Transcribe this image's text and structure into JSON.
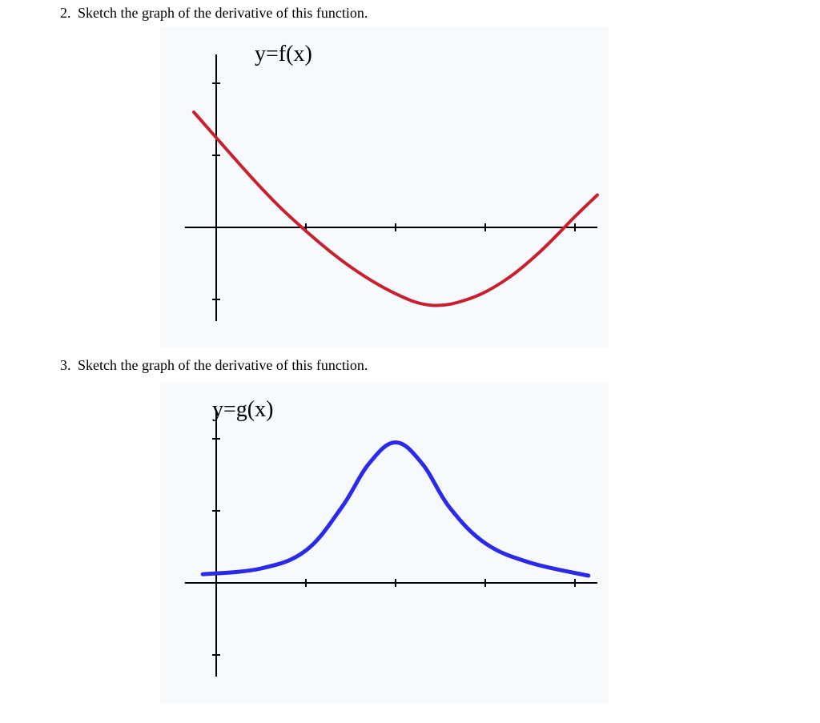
{
  "problem2": {
    "number": "2.",
    "text": "Sketch the graph of the derivative of this function.",
    "chart": {
      "label": "y=f(x)",
      "bg_color": "#f6fafd",
      "axis_color": "#000000",
      "axis_width": 2,
      "tick_length": 10,
      "curve_color": "#c8202f",
      "curve_width": 4,
      "x_ticks": [
        0,
        1,
        2,
        3,
        4
      ],
      "y_ticks": [
        -1,
        0,
        1,
        2
      ],
      "curve_points": [
        {
          "x": -0.25,
          "y": 1.6
        },
        {
          "x": 0.5,
          "y": 0.55
        },
        {
          "x": 1.0,
          "y": -0.05
        },
        {
          "x": 1.5,
          "y": -0.55
        },
        {
          "x": 2.0,
          "y": -0.92
        },
        {
          "x": 2.4,
          "y": -1.08
        },
        {
          "x": 2.8,
          "y": -1.0
        },
        {
          "x": 3.2,
          "y": -0.75
        },
        {
          "x": 3.6,
          "y": -0.35
        },
        {
          "x": 4.0,
          "y": 0.15
        },
        {
          "x": 4.25,
          "y": 0.45
        }
      ]
    }
  },
  "problem3": {
    "number": "3.",
    "text": "Sketch the graph of the derivative of this function.",
    "chart": {
      "label": "y=g(x)",
      "bg_color": "#f6fafd",
      "axis_color": "#000000",
      "axis_width": 2,
      "tick_length": 10,
      "curve_color": "#2a2ae8",
      "curve_width": 5,
      "x_ticks": [
        0,
        1,
        2,
        3,
        4
      ],
      "y_ticks": [
        -1,
        0,
        1,
        2
      ],
      "curve_points": [
        {
          "x": -0.15,
          "y": 0.12
        },
        {
          "x": 0.5,
          "y": 0.2
        },
        {
          "x": 1.0,
          "y": 0.45
        },
        {
          "x": 1.4,
          "y": 1.05
        },
        {
          "x": 1.7,
          "y": 1.65
        },
        {
          "x": 2.0,
          "y": 1.95
        },
        {
          "x": 2.3,
          "y": 1.65
        },
        {
          "x": 2.6,
          "y": 1.05
        },
        {
          "x": 3.0,
          "y": 0.55
        },
        {
          "x": 3.5,
          "y": 0.28
        },
        {
          "x": 4.15,
          "y": 0.1
        }
      ]
    }
  }
}
